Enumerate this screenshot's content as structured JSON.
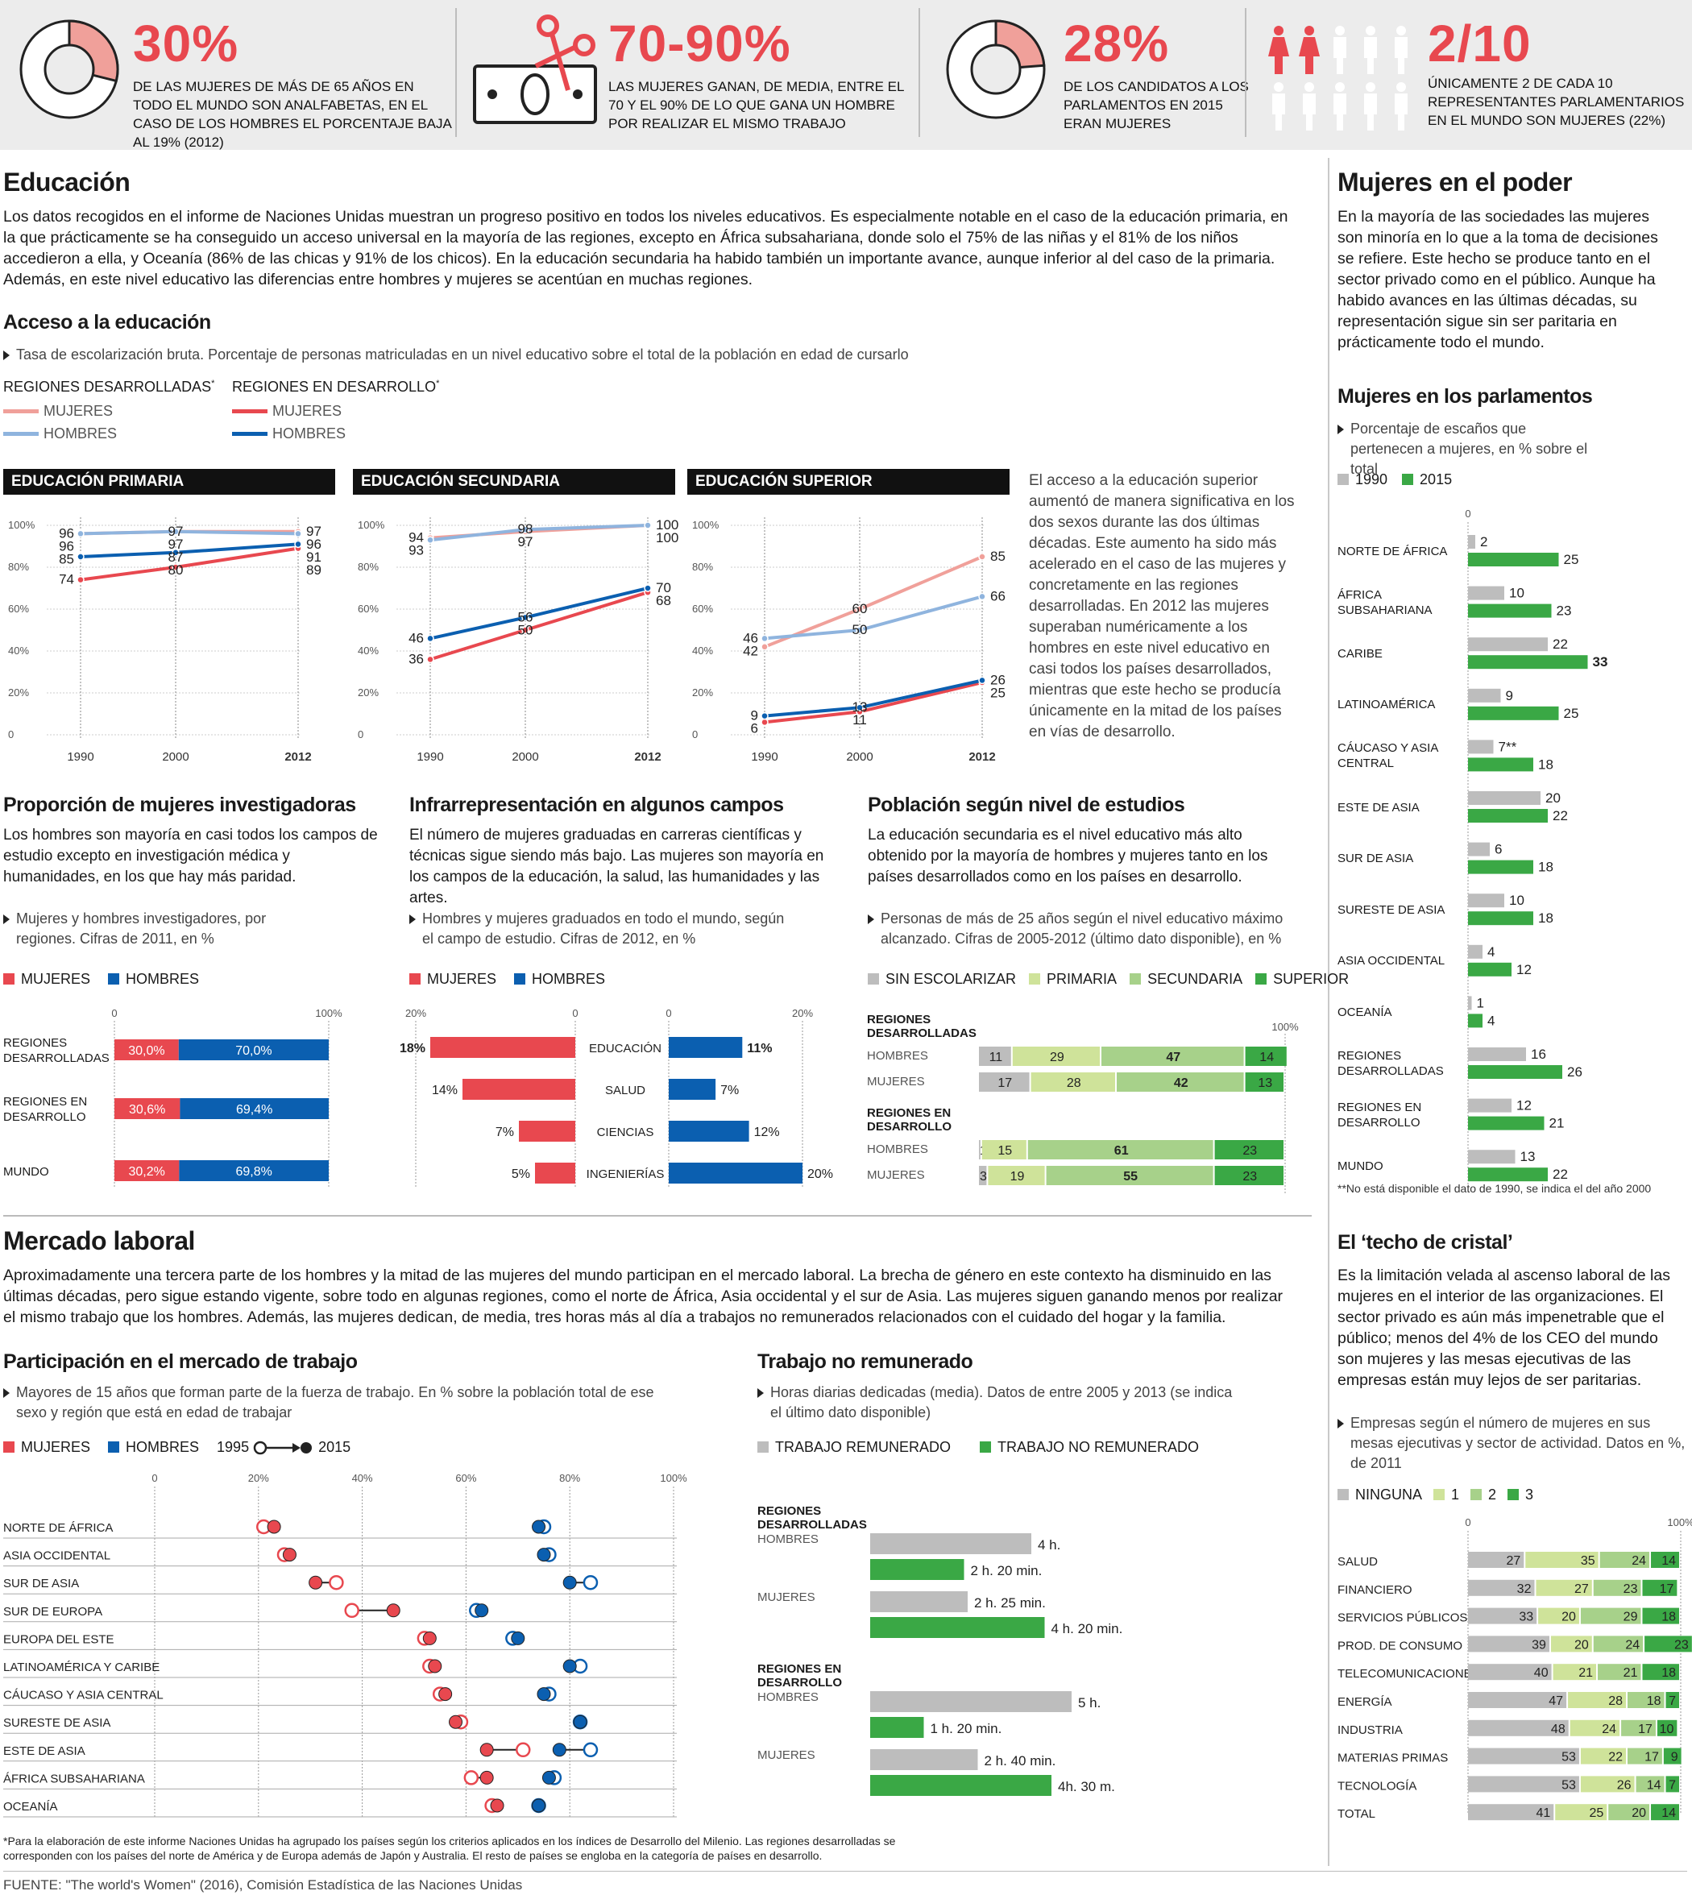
{
  "top_stats": [
    {
      "big": "30%",
      "text": "De las mujeres de más de 65 años en todo el mundo son analfabetas, en el caso de los hombres el porcentaje baja al 19% (2012)"
    },
    {
      "big": "70-90%",
      "text": "Las mujeres ganan, de media, entre el 70 y el 90% de lo que gana un hombre por realizar el mismo trabajo"
    },
    {
      "big": "28%",
      "text": "De los candidatos a los parlamentos en 2015 eran mujeres"
    },
    {
      "big": "2/10",
      "text": "Únicamente 2 de cada 10 representantes parlamentarios en el mundo son mujeres (22%)"
    }
  ],
  "educacion": {
    "title": "Educación",
    "body": "Los datos recogidos en el informe de Naciones Unidas muestran un progreso positivo en todos los niveles educativos. Es especialmente notable en el caso de la educación primaria, en la que prácticamente se ha conseguido un acceso universal en la mayoría de las regiones, excepto en África subsahariana, donde solo el 75% de las niñas y el 81% de los niños accedieron a ella, y Oceanía (86% de las chicas y 91% de los chicos). En la educación secundaria ha habido también un importante avance, aunque inferior al del caso de la primaria. Además, en este nivel educativo las diferencias entre hombres y mujeres se acentúan en muchas regiones.",
    "acceso_title": "Acceso a la educación",
    "acceso_note": "Tasa de escolarización bruta. Porcentaje de personas matriculadas en un nivel educativo sobre el total de la población en edad de cursarlo",
    "legend_dev": "REGIONES DESARROLLADAS",
    "legend_devng": "REGIONES EN DESARROLLO",
    "mujeres": "MUJERES",
    "hombres": "HOMBRES",
    "asterisk": "*",
    "superior_text": "El acceso a la educación superior aumentó de manera significativa en los dos sexos durante las dos últimas décadas. Este aumento ha sido más acelerado en el caso de las mujeres y concretamente en las regiones desarrolladas. En 2012 las mujeres superaban numéricamente a los hombres en este nivel educativo en casi todos los países desarrollados, mientras que este hecho se producía únicamente en la mitad de los países en vías de desarrollo."
  },
  "colors": {
    "red": "#e8484f",
    "pink": "#f0a09a",
    "blue": "#0b5fb0",
    "lightblue": "#8fb4de",
    "gray": "#bdbdbd",
    "green": "#3aa845",
    "lgreen1": "#cfe39a",
    "lgreen2": "#a7d18a"
  },
  "poder": {
    "title": "Mujeres en el poder",
    "body": "En la mayoría de las sociedades las mujeres son minoría en lo que a la toma de decisiones se refiere. Este hecho se produce tanto en el sector privado como en el público. Aunque ha habido avances en las últimas décadas, su representación sigue sin ser paritaria en prácticamente todo el mundo.",
    "parl_title": "Mujeres en los parlamentos",
    "parl_note": "Porcentaje de escaños que pertenecen a mujeres, en % sobre el total",
    "parl_footnote": "**No está disponible el dato de 1990, se indica el del año 2000",
    "techo_title": "El ‘techo de cristal’",
    "techo_body": "Es la limitación velada al ascenso laboral de las mujeres en el interior de las organizaciones. El sector privado es aún más impenetrable que el público; menos del 4% de los CEO del mundo son mujeres y las mesas ejecutivas de las empresas están muy lejos de ser paritarias.",
    "techo_note": "Empresas según el número de mujeres en sus mesas ejecutivas y sector de actividad. Datos en %, de 2011"
  },
  "investigadoras": {
    "title": "Proporción de mujeres investigadoras",
    "body": "Los hombres son mayoría en casi todos los campos de estudio excepto en investigación médica y humanidades, en los que hay más paridad.",
    "note": "Mujeres y hombres investigadores, por regiones. Cifras de 2011, en %"
  },
  "infra": {
    "title": "Infrarrepresentación en algunos campos",
    "body": "El número de mujeres graduadas en carreras científicas y técnicas sigue siendo más bajo. Las mujeres son mayoría en los campos de la educación, la salud, las humanidades y las artes.",
    "note": "Hombres y mujeres graduados en todo el mundo, según el campo de estudio. Cifras de 2012, en %"
  },
  "poblacion": {
    "title": "Población según nivel de estudios",
    "body": "La educación secundaria es el nivel educativo más alto obtenido por la mayoría de hombres y mujeres tanto en los países desarrollados como en los países en desarrollo.",
    "note": "Personas de más de 25 años según el nivel educativo máximo alcanzado. Cifras de 2005-2012 (último dato disponible), en %"
  },
  "laboral": {
    "title": "Mercado laboral",
    "body": "Aproximadamente una tercera parte de los hombres y la mitad de las mujeres del mundo participan en el mercado laboral. La brecha de género en este contexto ha disminuido en las últimas décadas, pero sigue estando vigente, sobre todo en algunas regiones, como el norte de África, Asia occidental y el sur de Asia. Las mujeres siguen ganando menos por realizar el mismo trabajo que los hombres. Además, las mujeres dedican, de media, tres horas más al día a trabajos no remunerados relacionados con el cuidado del hogar y la familia.",
    "part_title": "Participación en el mercado de trabajo",
    "part_note": "Mayores de 15 años que forman parte de la fuerza de trabajo. En % sobre la población total de ese sexo y región que está en edad de trabajar",
    "trab_title": "Trabajo no remunerado",
    "trab_note": "Horas diarias dedicadas (media). Datos de entre 2005 y 2013 (se indica el último dato disponible)",
    "year_from": "1995",
    "year_to": "2015"
  },
  "footnote": "*Para la elaboración de este informe Naciones Unidas ha agrupado los países según los criterios aplicados en los índices de Desarrollo del Milenio. Las regiones desarrolladas se corresponden con los países del norte de América y de Europa además de Japón y Australia. El resto de países se engloba en la categoría de países en desarrollo.",
  "source": "FUENTE: \"The world's Women\" (2016), Comisión Estadística de las Naciones Unidas",
  "chart_data": [
    {
      "type": "line",
      "title": "EDUCACIÓN PRIMARIA",
      "x": [
        "1990",
        "2000",
        "2012"
      ],
      "ylim": [
        0,
        100
      ],
      "yticks": [
        "0",
        "20%",
        "40%",
        "60%",
        "80%",
        "100%"
      ],
      "series": [
        {
          "name": "REGIONES DESARROLLADAS MUJERES",
          "values": [
            96,
            97,
            97
          ]
        },
        {
          "name": "REGIONES DESARROLLADAS HOMBRES",
          "values": [
            96,
            97,
            96
          ]
        },
        {
          "name": "REGIONES EN DESARROLLO MUJERES",
          "values": [
            74,
            80,
            89
          ]
        },
        {
          "name": "REGIONES EN DESARROLLO HOMBRES",
          "values": [
            85,
            87,
            91
          ]
        }
      ]
    },
    {
      "type": "line",
      "title": "EDUCACIÓN SECUNDARIA",
      "x": [
        "1990",
        "2000",
        "2012"
      ],
      "ylim": [
        0,
        100
      ],
      "yticks": [
        "0",
        "20%",
        "40%",
        "60%",
        "80%",
        "100%"
      ],
      "series": [
        {
          "name": "REGIONES DESARROLLADAS MUJERES",
          "values": [
            94,
            97,
            100
          ]
        },
        {
          "name": "REGIONES DESARROLLADAS HOMBRES",
          "values": [
            93,
            98,
            100
          ]
        },
        {
          "name": "REGIONES EN DESARROLLO MUJERES",
          "values": [
            36,
            50,
            68
          ]
        },
        {
          "name": "REGIONES EN DESARROLLO HOMBRES",
          "values": [
            46,
            56,
            70
          ]
        }
      ]
    },
    {
      "type": "line",
      "title": "EDUCACIÓN SUPERIOR",
      "x": [
        "1990",
        "2000",
        "2012"
      ],
      "ylim": [
        0,
        100
      ],
      "yticks": [
        "0",
        "20%",
        "40%",
        "60%",
        "80%",
        "100%"
      ],
      "series": [
        {
          "name": "REGIONES DESARROLLADAS MUJERES",
          "values": [
            42,
            60,
            85
          ]
        },
        {
          "name": "REGIONES DESARROLLADAS HOMBRES",
          "values": [
            46,
            50,
            66
          ]
        },
        {
          "name": "REGIONES EN DESARROLLO MUJERES",
          "values": [
            6,
            11,
            25
          ]
        },
        {
          "name": "REGIONES EN DESARROLLO HOMBRES",
          "values": [
            9,
            13,
            26
          ]
        }
      ]
    },
    {
      "type": "bar",
      "title": "Mujeres en los parlamentos",
      "xlim": [
        0,
        40
      ],
      "categories": [
        "NORTE DE ÁFRICA",
        "ÁFRICA SUBSAHARIANA",
        "CARIBE",
        "LATINOAMÉRICA",
        "CÁUCASO Y ASIA CENTRAL",
        "ESTE DE ASIA",
        "SUR DE ASIA",
        "SURESTE DE ASIA",
        "ASIA OCCIDENTAL",
        "OCEANÍA",
        "REGIONES DESARROLLADAS",
        "REGIONES EN DESARROLLO",
        "MUNDO"
      ],
      "series": [
        {
          "name": "1990",
          "values": [
            2,
            10,
            22,
            9,
            7,
            20,
            6,
            10,
            4,
            1,
            16,
            12,
            13
          ],
          "labels": [
            "2",
            "10",
            "22",
            "9",
            "7**",
            "20",
            "6",
            "10",
            "4",
            "1",
            "16",
            "12",
            "13"
          ]
        },
        {
          "name": "2015",
          "values": [
            25,
            23,
            33,
            25,
            18,
            22,
            18,
            18,
            12,
            4,
            26,
            21,
            22
          ]
        }
      ]
    },
    {
      "type": "bar",
      "title": "Proporción de mujeres investigadoras",
      "xlim": [
        0,
        100
      ],
      "xticks": [
        "0",
        "100%"
      ],
      "categories": [
        "REGIONES DESARROLLADAS",
        "REGIONES EN DESARROLLO",
        "MUNDO"
      ],
      "series": [
        {
          "name": "MUJERES",
          "values": [
            30.0,
            30.6,
            30.2
          ],
          "labels": [
            "30,0%",
            "30,6%",
            "30,2%"
          ]
        },
        {
          "name": "HOMBRES",
          "values": [
            70.0,
            69.4,
            69.8
          ],
          "labels": [
            "70,0%",
            "69,4%",
            "69,8%"
          ]
        }
      ]
    },
    {
      "type": "bar",
      "title": "Infrarrepresentación en algunos campos",
      "xlim": [
        0,
        20
      ],
      "xticks": [
        "20%",
        "0",
        "0",
        "20%"
      ],
      "categories": [
        "EDUCACIÓN",
        "SALUD",
        "CIENCIAS",
        "INGENIERÍAS"
      ],
      "series": [
        {
          "name": "MUJERES",
          "values": [
            18,
            14,
            7,
            5
          ],
          "labels": [
            "18%",
            "14%",
            "7%",
            "5%"
          ]
        },
        {
          "name": "HOMBRES",
          "values": [
            11,
            7,
            12,
            20
          ],
          "labels": [
            "11%",
            "7%",
            "12%",
            "20%"
          ]
        }
      ]
    },
    {
      "type": "bar",
      "title": "Población según nivel de estudios",
      "xlim": [
        0,
        100
      ],
      "xticks": [
        "100%"
      ],
      "groups": [
        {
          "name": "REGIONES DESARROLLADAS",
          "rows": [
            {
              "label": "HOMBRES",
              "values": [
                11,
                29,
                47,
                14
              ]
            },
            {
              "label": "MUJERES",
              "values": [
                17,
                28,
                42,
                13
              ]
            }
          ]
        },
        {
          "name": "REGIONES EN DESARROLLO",
          "rows": [
            {
              "label": "HOMBRES",
              "values": [
                1,
                15,
                61,
                23
              ]
            },
            {
              "label": "MUJERES",
              "values": [
                3,
                19,
                55,
                23
              ]
            }
          ]
        }
      ],
      "series_names": [
        "SIN ESCOLARIZAR",
        "PRIMARIA",
        "SECUNDARIA",
        "SUPERIOR"
      ]
    },
    {
      "type": "scatter",
      "title": "Participación en el mercado de trabajo",
      "xlim": [
        0,
        100
      ],
      "xticks": [
        "0",
        "20%",
        "40%",
        "60%",
        "80%",
        "100%"
      ],
      "categories": [
        "NORTE DE ÁFRICA",
        "ASIA OCCIDENTAL",
        "SUR DE ASIA",
        "SUR DE EUROPA",
        "EUROPA DEL ESTE",
        "LATINOAMÉRICA Y CARIBE",
        "CÁUCASO Y ASIA CENTRAL",
        "SURESTE DE ASIA",
        "ESTE DE ASIA",
        "ÁFRICA SUBSAHARIANA",
        "OCEANÍA"
      ],
      "series": [
        {
          "name": "MUJERES 1995",
          "values": [
            21,
            25,
            35,
            38,
            52,
            53,
            55,
            59,
            71,
            61,
            65
          ]
        },
        {
          "name": "MUJERES 2015",
          "values": [
            23,
            26,
            31,
            46,
            53,
            54,
            56,
            58,
            64,
            64,
            66
          ]
        },
        {
          "name": "HOMBRES 1995",
          "values": [
            75,
            76,
            84,
            62,
            69,
            82,
            76,
            82,
            84,
            77,
            74
          ]
        },
        {
          "name": "HOMBRES 2015",
          "values": [
            74,
            75,
            80,
            63,
            70,
            80,
            75,
            82,
            78,
            76,
            74
          ]
        }
      ]
    },
    {
      "type": "bar",
      "title": "Trabajo no remunerado",
      "groups": [
        {
          "name": "REGIONES DESARROLLADAS",
          "rows": [
            {
              "label": "HOMBRES",
              "remunerado": 4.0,
              "no_remunerado": 2.33,
              "labels": [
                "4 h.",
                "2 h. 20 min."
              ]
            },
            {
              "label": "MUJERES",
              "remunerado": 2.42,
              "no_remunerado": 4.33,
              "labels": [
                "2 h. 25 min.",
                "4 h. 20 min."
              ]
            }
          ]
        },
        {
          "name": "REGIONES EN DESARROLLO",
          "rows": [
            {
              "label": "HOMBRES",
              "remunerado": 5.0,
              "no_remunerado": 1.33,
              "labels": [
                "5 h.",
                "1 h. 20 min."
              ]
            },
            {
              "label": "MUJERES",
              "remunerado": 2.67,
              "no_remunerado": 4.5,
              "labels": [
                "2 h. 40 min.",
                "4h. 30 m."
              ]
            }
          ]
        }
      ],
      "series_names": [
        "TRABAJO REMUNERADO",
        "TRABAJO NO REMUNERADO"
      ]
    },
    {
      "type": "bar",
      "title": "El ‘techo de cristal’",
      "xlim": [
        0,
        100
      ],
      "xticks": [
        "0",
        "100%"
      ],
      "categories": [
        "SALUD",
        "FINANCIERO",
        "SERVICIOS PÚBLICOS",
        "PROD. DE CONSUMO",
        "TELECOMUNICACIONES",
        "ENERGÍA",
        "INDUSTRIA",
        "MATERIAS PRIMAS",
        "TECNOLOGÍA",
        "TOTAL"
      ],
      "series_names": [
        "NINGUNA",
        "1",
        "2",
        "3"
      ],
      "rows": [
        [
          27,
          35,
          24,
          14
        ],
        [
          32,
          27,
          23,
          17
        ],
        [
          33,
          20,
          29,
          18
        ],
        [
          39,
          20,
          24,
          23
        ],
        [
          40,
          21,
          21,
          18
        ],
        [
          47,
          28,
          18,
          7
        ],
        [
          48,
          24,
          17,
          10
        ],
        [
          53,
          22,
          17,
          9
        ],
        [
          53,
          26,
          14,
          7
        ],
        [
          41,
          25,
          20,
          14
        ]
      ]
    }
  ]
}
